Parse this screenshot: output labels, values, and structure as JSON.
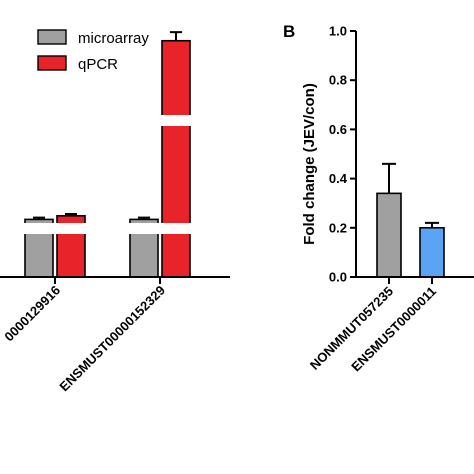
{
  "chart_data": [
    {
      "panel": "",
      "type": "bar",
      "categories": [
        "0000129916",
        "ENSMUST00000152329"
      ],
      "series": [
        {
          "name": "microarray",
          "color": "#a0a0a0",
          "values": [
            1.6,
            1.6
          ],
          "errors": [
            0.05,
            0.05
          ]
        },
        {
          "name": "qPCR",
          "color": "#e8242a",
          "values": [
            1.7,
            8.5
          ],
          "errors": [
            0.05,
            0.4
          ]
        }
      ],
      "axis_break": true,
      "legend_position": "top-left",
      "xlabel": "",
      "ylabel": ""
    },
    {
      "panel": "B",
      "type": "bar",
      "categories": [
        "NONMMUT057235",
        "ENSMUST0000011"
      ],
      "series": [
        {
          "name": "",
          "values": [
            0.34,
            0.2
          ],
          "errors": [
            0.12,
            0.02
          ],
          "colors": [
            "#a0a0a0",
            "#5ba3f5"
          ]
        }
      ],
      "ylabel": "Fold change (JEV/con)",
      "ylim": [
        0,
        1.0
      ],
      "yticks": [
        "0.0",
        "0.2",
        "0.4",
        "0.6",
        "0.8",
        "1.0"
      ]
    }
  ]
}
